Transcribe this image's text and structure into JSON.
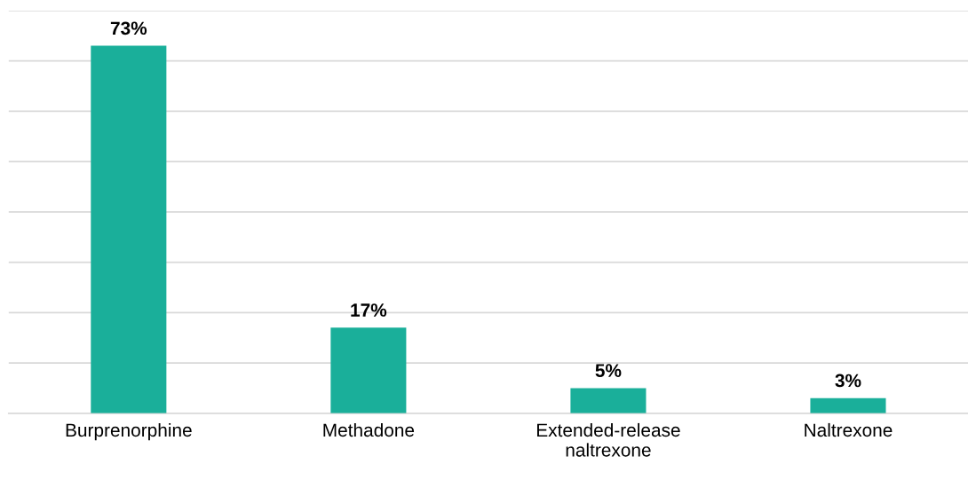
{
  "chart_data": {
    "type": "bar",
    "categories": [
      "Burprenorphine",
      "Methadone",
      "Extended-release\nnaltrexone",
      "Naltrexone"
    ],
    "values": [
      73,
      17,
      5,
      3
    ],
    "value_labels": [
      "73%",
      "17%",
      "5%",
      "3%"
    ],
    "color": "#1aaf9a",
    "ylim": [
      0,
      80
    ],
    "yticks": [
      {
        "value": 0,
        "label": null
      },
      {
        "value": 10,
        "label": null
      },
      {
        "value": 20,
        "label": null
      },
      {
        "value": 30,
        "label": null
      },
      {
        "value": 40,
        "label": null
      },
      {
        "value": 50,
        "label": null
      },
      {
        "value": 60,
        "label": null
      },
      {
        "value": 70,
        "label": null
      },
      {
        "value": 80,
        "label": null
      }
    ],
    "tick_labels": "x",
    "grid": "y",
    "legend": false
  }
}
